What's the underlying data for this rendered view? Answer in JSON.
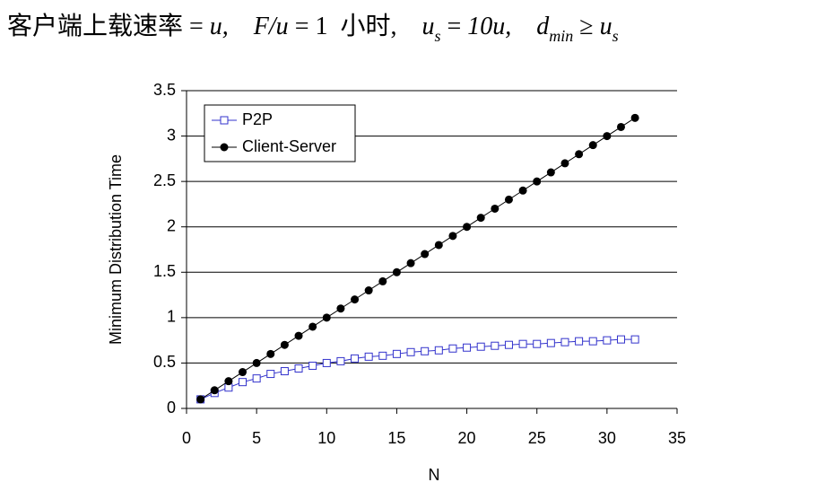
{
  "chart_data": {
    "type": "line",
    "title": [
      {
        "text": "客户端上载速率 = "
      },
      {
        "text": "u,",
        "italic": true
      },
      {
        "text": "    F/u",
        "italic": true
      },
      {
        "text": " = 1  小时,    "
      },
      {
        "text": "u",
        "italic": true
      },
      {
        "text": "s",
        "italic": true,
        "sub": true
      },
      {
        "text": " = "
      },
      {
        "text": "10u,    ",
        "italic": true
      },
      {
        "text": "d",
        "italic": true
      },
      {
        "text": "min",
        "italic": true,
        "sub": true
      },
      {
        "text": " ≥ "
      },
      {
        "text": "u",
        "italic": true
      },
      {
        "text": "s",
        "italic": true,
        "sub": true
      }
    ],
    "x_label": "N",
    "y_label": "Minimum Distribution Time",
    "x": [
      1,
      2,
      3,
      4,
      5,
      6,
      7,
      8,
      9,
      10,
      11,
      12,
      13,
      14,
      15,
      16,
      17,
      18,
      19,
      20,
      21,
      22,
      23,
      24,
      25,
      26,
      27,
      28,
      29,
      30,
      31,
      32
    ],
    "series": [
      {
        "name": "P2P",
        "color": "#3333cc",
        "marker": "square",
        "values": [
          0.1,
          0.17,
          0.23,
          0.29,
          0.33,
          0.38,
          0.41,
          0.44,
          0.47,
          0.5,
          0.52,
          0.55,
          0.57,
          0.58,
          0.6,
          0.62,
          0.63,
          0.64,
          0.66,
          0.67,
          0.68,
          0.69,
          0.7,
          0.71,
          0.71,
          0.72,
          0.73,
          0.74,
          0.74,
          0.75,
          0.76,
          0.76
        ]
      },
      {
        "name": "Client-Server",
        "color": "#000000",
        "marker": "circle",
        "values": [
          0.1,
          0.2,
          0.3,
          0.4,
          0.5,
          0.6,
          0.7,
          0.8,
          0.9,
          1,
          1.1,
          1.2,
          1.3,
          1.4,
          1.5,
          1.6,
          1.7,
          1.8,
          1.9,
          2,
          2.1,
          2.2,
          2.3,
          2.4,
          2.5,
          2.6,
          2.7,
          2.8,
          2.9,
          3,
          3.1,
          3.2
        ]
      }
    ],
    "xlim": [
      0,
      35
    ],
    "xticks": [
      0,
      5,
      10,
      15,
      20,
      25,
      30,
      35
    ],
    "ylim": [
      0,
      3.5
    ],
    "yticks": [
      0,
      0.5,
      1,
      1.5,
      2,
      2.5,
      3,
      3.5
    ],
    "grid": true,
    "legend": "upper-left"
  }
}
